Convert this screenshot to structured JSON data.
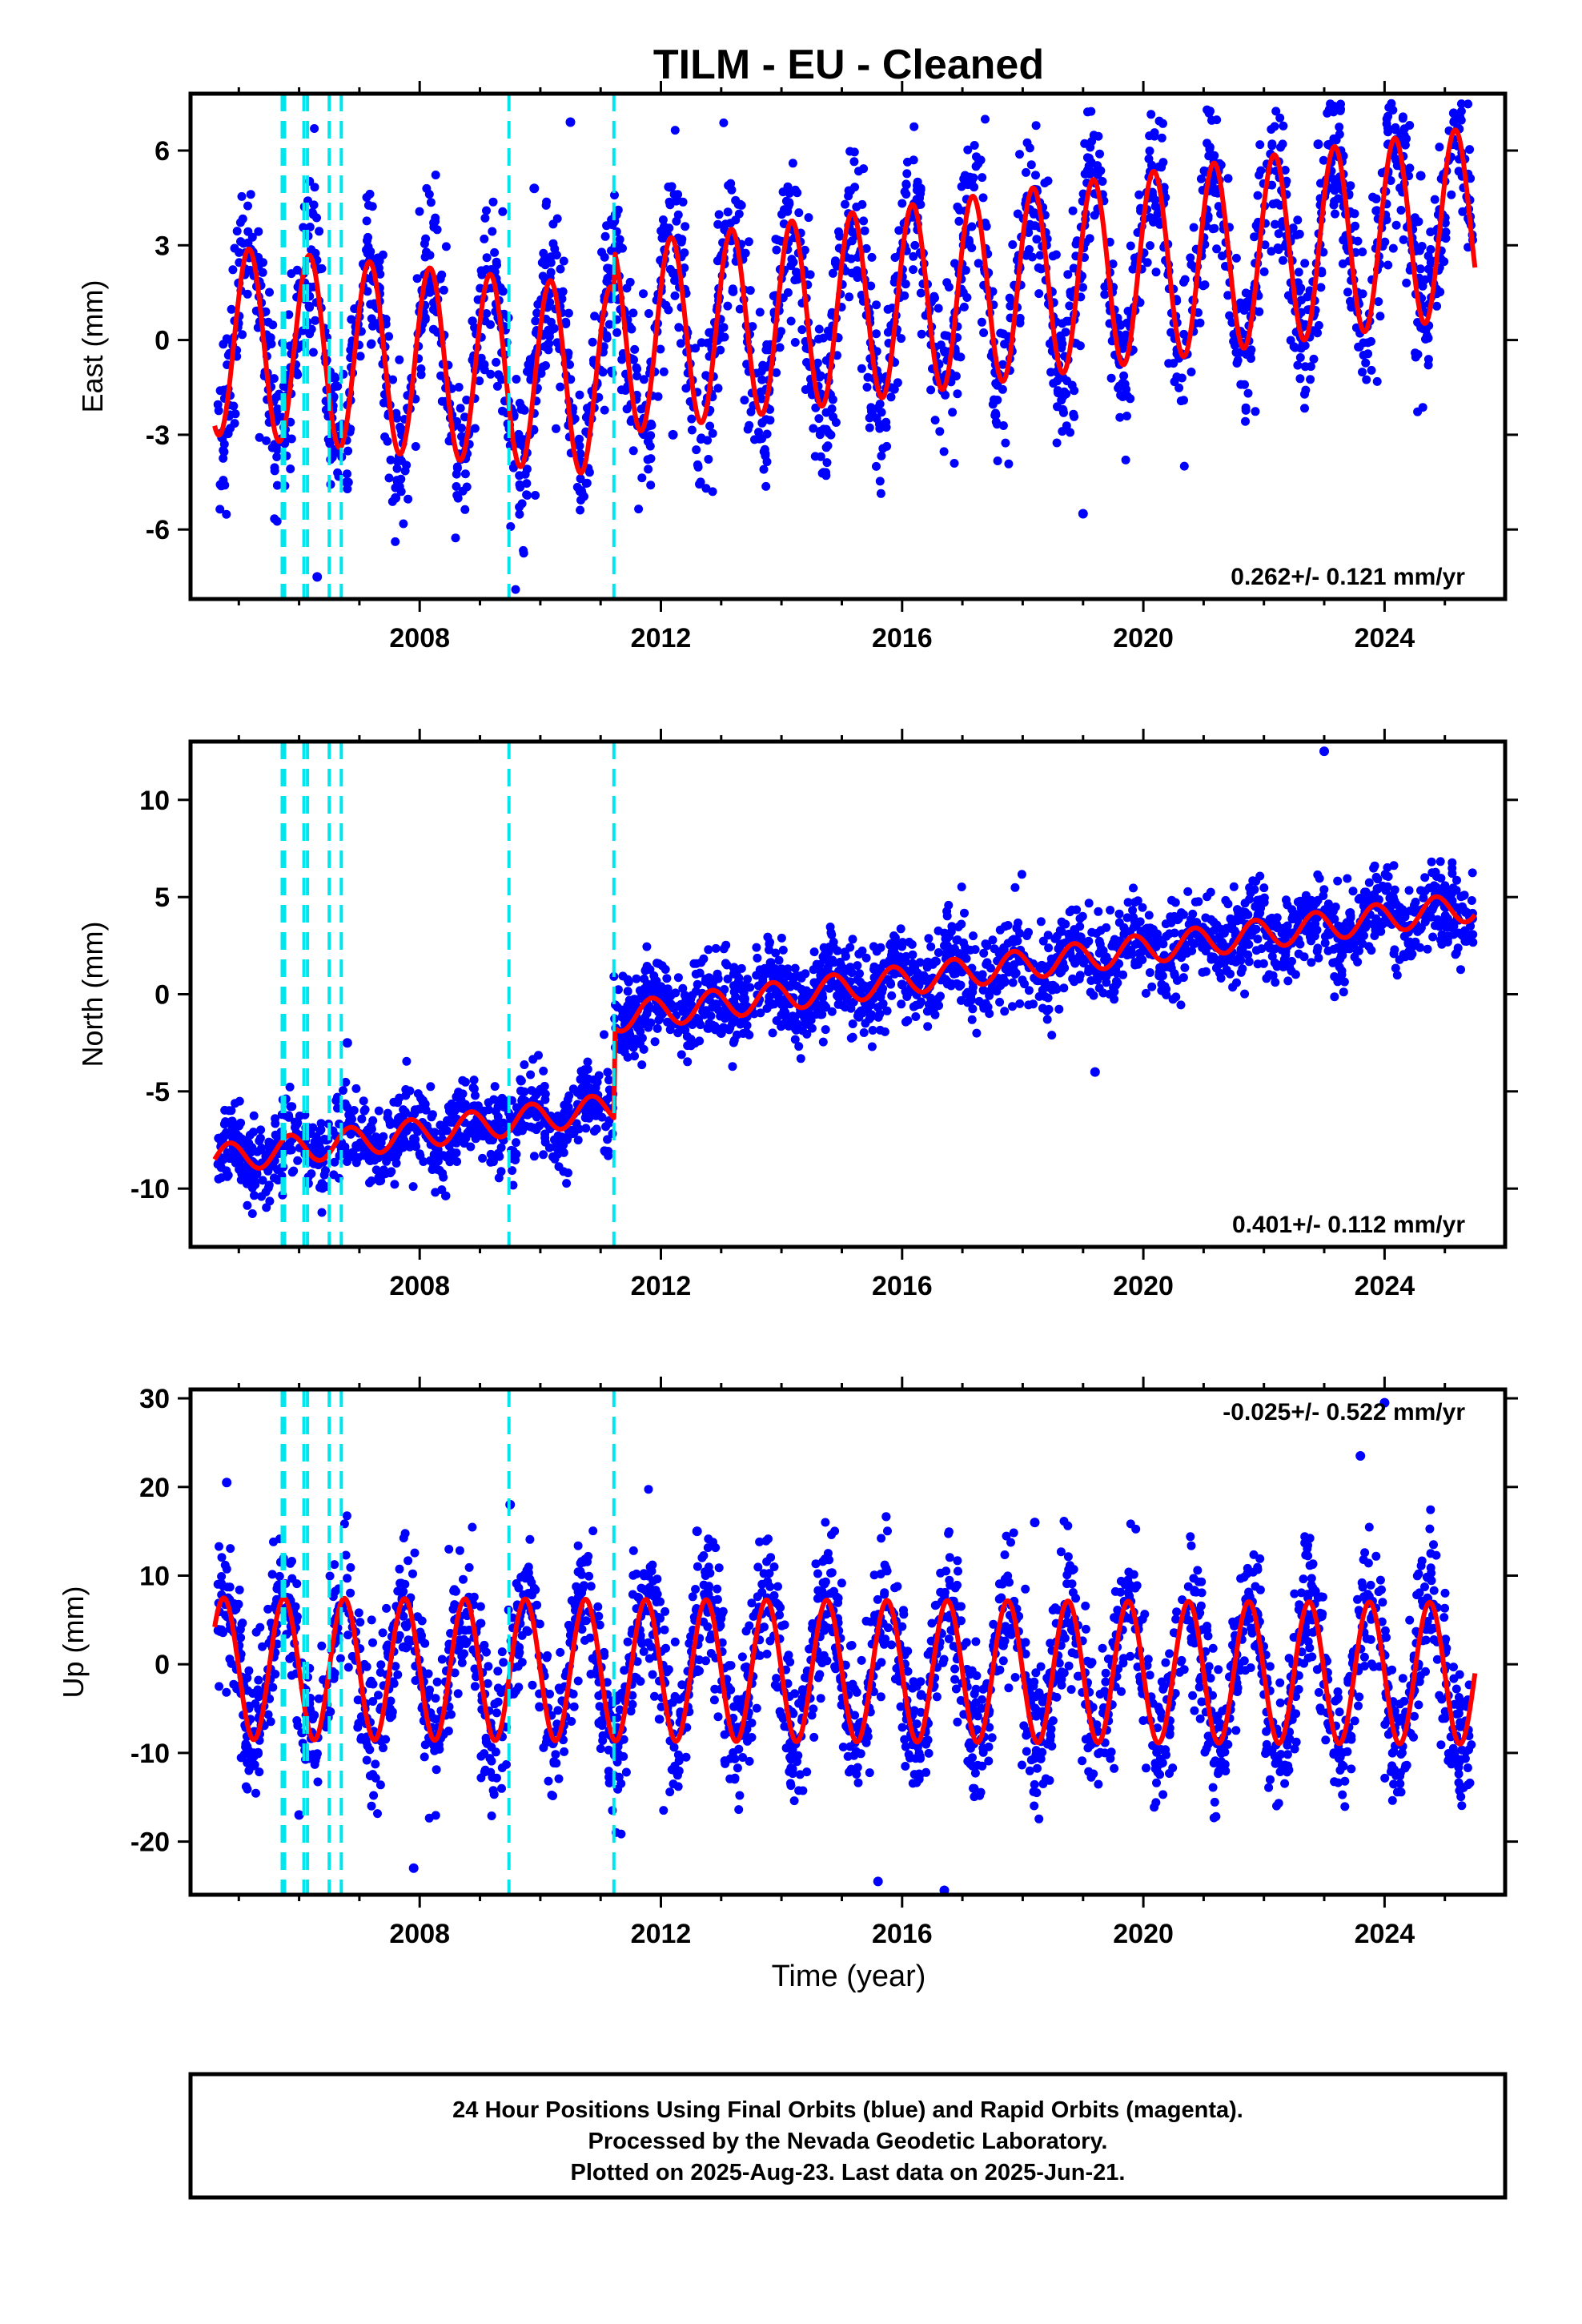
{
  "title": "TILM  - EU - Cleaned",
  "xlabel": "Time (year)",
  "footer": {
    "line1": "24 Hour Positions Using Final Orbits (blue) and Rapid Orbits (magenta).",
    "line2": "Processed by the Nevada Geodetic Laboratory.",
    "line3": "Plotted on 2025-Aug-23. Last data on 2025-Jun-21."
  },
  "colors": {
    "points": "#0000ff",
    "model": "#ff0000",
    "breaks": "#00e5ee"
  },
  "chart_data": [
    {
      "type": "scatter",
      "ylabel": "East (mm)",
      "rate_label": "0.262+/- 0.121 mm/yr",
      "rate_position": "bottom-right",
      "xlim": [
        2004.2,
        2026.0
      ],
      "ylim": [
        -8.2,
        7.8
      ],
      "x_ticks": [
        "2008",
        "2012",
        "2016",
        "2020",
        "2024"
      ],
      "y_ticks": [
        "6",
        "3",
        "0",
        "-3",
        "-6"
      ],
      "y_tick_values": [
        6,
        3,
        0,
        -3,
        -6
      ],
      "breaks": [
        2005.72,
        2005.76,
        2006.08,
        2006.14,
        2006.5,
        2006.7,
        2009.48,
        2011.22
      ],
      "data_range": [
        2004.65,
        2025.47
      ],
      "model": {
        "pieces": [
          [
            2004.6,
            2011.22,
            0.0,
            -0.2
          ],
          [
            2011.22,
            2025.5,
            0.0,
            0.262
          ]
        ],
        "t0": 2014,
        "amp": 3.0,
        "phase": 2004.92,
        "scatter": 1.3
      },
      "series": [
        {
          "points_sample": [
            [
              2005.0,
              1.8
            ],
            [
              2006.3,
              -7.5
            ],
            [
              2007.6,
              -5.0
            ],
            [
              2009.9,
              4.8
            ],
            [
              2010.5,
              6.9
            ],
            [
              2012.2,
              -3.0
            ],
            [
              2016.0,
              2.0
            ],
            [
              2019.0,
              -5.5
            ],
            [
              2022.9,
              6.2
            ],
            [
              2024.6,
              5.2
            ]
          ]
        }
      ]
    },
    {
      "type": "scatter",
      "ylabel": "North (mm)",
      "rate_label": "0.401+/- 0.112 mm/yr",
      "rate_position": "bottom-right",
      "xlim": [
        2004.2,
        2026.0
      ],
      "ylim": [
        -13.0,
        13.0
      ],
      "x_ticks": [
        "2008",
        "2012",
        "2016",
        "2020",
        "2024"
      ],
      "y_ticks": [
        "10",
        "5",
        "0",
        "-5",
        "-10"
      ],
      "y_tick_values": [
        10,
        5,
        0,
        -5,
        -10
      ],
      "breaks": [
        2005.72,
        2005.76,
        2006.08,
        2006.14,
        2006.5,
        2006.7,
        2009.48,
        2011.22
      ],
      "data_range": [
        2004.65,
        2025.47
      ],
      "model": {
        "pieces": [
          [
            2004.6,
            2011.22,
            -8.5,
            0.401
          ],
          [
            2011.22,
            2025.5,
            -1.2,
            0.401
          ]
        ],
        "t0": 2004.6,
        "t1": 2011.22,
        "amp": 0.75,
        "phase": 2004.6,
        "scatter": 1.1
      },
      "series": [
        {
          "points_sample": [
            [
              2005.0,
              -8.0
            ],
            [
              2006.8,
              -2.5
            ],
            [
              2008.5,
              -6.0
            ],
            [
              2011.5,
              -1.0
            ],
            [
              2013.0,
              -2.0
            ],
            [
              2016.0,
              0.5
            ],
            [
              2019.2,
              -4.0
            ],
            [
              2021.0,
              3.0
            ],
            [
              2023.0,
              12.5
            ],
            [
              2025.0,
              4.5
            ]
          ]
        }
      ]
    },
    {
      "type": "scatter",
      "ylabel": "Up (mm)",
      "rate_label": "-0.025+/- 0.522 mm/yr",
      "rate_position": "top-right",
      "xlim": [
        2004.2,
        2026.0
      ],
      "ylim": [
        -26.0,
        31.0
      ],
      "x_ticks": [
        "2008",
        "2012",
        "2016",
        "2020",
        "2024"
      ],
      "y_ticks": [
        "30",
        "20",
        "10",
        "0",
        "-10",
        "-20"
      ],
      "y_tick_values": [
        30,
        20,
        10,
        0,
        -10,
        -20
      ],
      "breaks": [
        2005.72,
        2005.76,
        2006.08,
        2006.14,
        2006.5,
        2006.7,
        2009.48,
        2011.22
      ],
      "data_range": [
        2004.65,
        2025.47
      ],
      "model": {
        "pieces": [
          [
            2004.6,
            2025.5,
            -0.5,
            -0.025
          ]
        ],
        "t0": 2004.6,
        "amp": 8.0,
        "phase": 2004.5,
        "scatter": 4.0
      },
      "series": [
        {
          "points_sample": [
            [
              2004.8,
              20.5
            ],
            [
              2006.0,
              -17.0
            ],
            [
              2007.9,
              -23.0
            ],
            [
              2009.5,
              18.0
            ],
            [
              2012.6,
              15.0
            ],
            [
              2015.6,
              -24.5
            ],
            [
              2016.7,
              -25.5
            ],
            [
              2018.2,
              16.0
            ],
            [
              2023.6,
              23.5
            ],
            [
              2024.0,
              29.5
            ]
          ]
        }
      ]
    }
  ]
}
